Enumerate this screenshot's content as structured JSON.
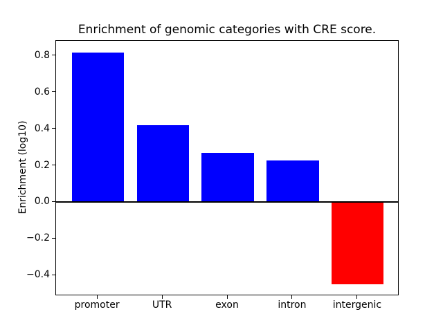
{
  "figure": {
    "background": "#ffffff"
  },
  "chart_data": {
    "type": "bar",
    "title": "Enrichment of genomic categories with CRE score.",
    "ylabel": "Enrichment (log10)",
    "xlabel": "",
    "categories": [
      "promoter",
      "UTR",
      "exon",
      "intron",
      "intergenic"
    ],
    "values": [
      0.82,
      0.42,
      0.27,
      0.23,
      -0.45
    ],
    "bar_colors": [
      "#0000ff",
      "#0000ff",
      "#0000ff",
      "#0000ff",
      "#ff0000"
    ],
    "bar_width": 0.8,
    "ylim": [
      -0.513,
      0.883
    ],
    "xlim": [
      -0.64,
      4.64
    ],
    "yticks": [
      {
        "value": 0.8,
        "label": "0.8"
      },
      {
        "value": 0.6,
        "label": "0.6"
      },
      {
        "value": 0.4,
        "label": "0.4"
      },
      {
        "value": 0.2,
        "label": "0.2"
      },
      {
        "value": 0.0,
        "label": "0.0"
      },
      {
        "value": -0.2,
        "label": "−0.2"
      },
      {
        "value": -0.4,
        "label": "−0.4"
      }
    ],
    "zero_line": {
      "show": true,
      "color": "#000000"
    },
    "grid": false,
    "legend": "none",
    "axis_color": "#000000"
  }
}
